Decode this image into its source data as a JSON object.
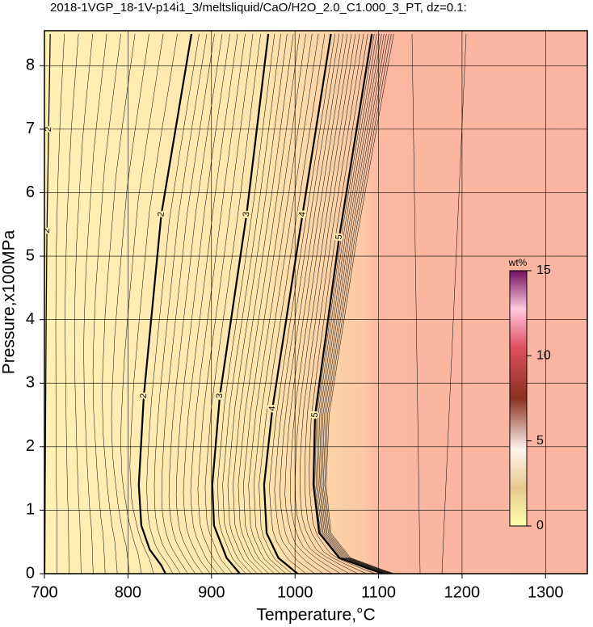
{
  "chart_data": {
    "type": "contour",
    "title": "2018-1VGP_18-1V-p14i1_3/meltsliquid/CaO/H2O_2.0_C1.000_3_PT, dz=0.1:",
    "x_label": "Temperature,°C",
    "y_label": "Pressure,x100MPa",
    "xlim": [
      700,
      1350
    ],
    "ylim": [
      0,
      8.5
    ],
    "xticks": [
      700,
      800,
      900,
      1000,
      1100,
      1200,
      1300
    ],
    "yticks": [
      0,
      1,
      2,
      3,
      4,
      5,
      6,
      7,
      8
    ],
    "grid": true,
    "contours": [
      {
        "level": 2,
        "x": [
          707,
          705,
          703,
          702,
          701,
          700.5
        ],
        "y": [
          8.5,
          7.0,
          5.4,
          3.9,
          1.5,
          0
        ]
      },
      {
        "level": 2,
        "x": [
          876,
          840,
          819,
          813,
          816,
          826,
          840,
          845
        ],
        "y": [
          8.5,
          5.66,
          2.8,
          1.4,
          0.76,
          0.38,
          0.13,
          0
        ]
      },
      {
        "level": 3,
        "x": [
          968,
          942,
          910,
          901,
          903,
          918,
          934
        ],
        "y": [
          8.5,
          5.66,
          2.8,
          1.4,
          0.76,
          0.25,
          0
        ]
      },
      {
        "level": 4,
        "x": [
          1043,
          1009,
          973,
          963,
          966,
          980,
          1003
        ],
        "y": [
          8.5,
          5.66,
          2.6,
          1.4,
          0.64,
          0.25,
          0
        ]
      },
      {
        "level": 5,
        "x": [
          1092,
          1053,
          1024,
          1022,
          1029,
          1053,
          1092,
          1106
        ],
        "y": [
          8.5,
          5.3,
          2.5,
          1.4,
          0.64,
          0.25,
          0.06,
          0
        ]
      }
    ],
    "colorbar": {
      "label": "wt%",
      "lim": [
        0,
        15
      ],
      "ticks": [
        0,
        5,
        10,
        15
      ]
    }
  }
}
